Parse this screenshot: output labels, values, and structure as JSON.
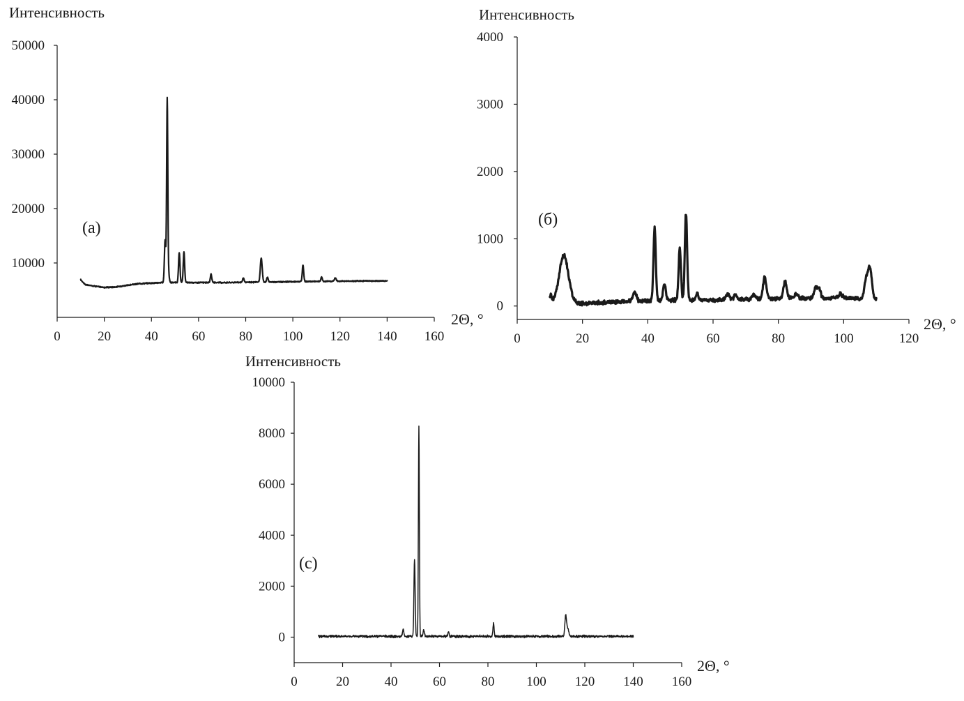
{
  "figure": {
    "background": "#ffffff",
    "ink": "#1a1a1a"
  },
  "chart_data": [
    {
      "id": "a",
      "type": "line",
      "panel_label": "(a)",
      "ylabel": "Интенсивность",
      "xlabel": "2Θ, °",
      "xlim": [
        0,
        160
      ],
      "ylim": [
        0,
        50000
      ],
      "xticks": [
        0,
        20,
        40,
        60,
        80,
        100,
        120,
        140,
        160
      ],
      "yticks": [
        10000,
        20000,
        30000,
        40000,
        50000
      ],
      "grid": false,
      "series": [
        {
          "baseline": [
            [
              10,
              6900
            ],
            [
              12,
              6000
            ],
            [
              15,
              5800
            ],
            [
              20,
              5500
            ],
            [
              25,
              5600
            ],
            [
              30,
              5900
            ],
            [
              35,
              6200
            ],
            [
              40,
              6300
            ],
            [
              45,
              6400
            ],
            [
              50,
              6400
            ],
            [
              60,
              6400
            ],
            [
              70,
              6400
            ],
            [
              80,
              6450
            ],
            [
              90,
              6500
            ],
            [
              100,
              6550
            ],
            [
              110,
              6600
            ],
            [
              120,
              6650
            ],
            [
              130,
              6700
            ],
            [
              140,
              6700
            ]
          ],
          "peaks": [
            [
              45.8,
              7800,
              0.3
            ],
            [
              46.7,
              33700,
              0.25
            ],
            [
              47.3,
              1500,
              0.3
            ],
            [
              51.8,
              5500,
              0.3
            ],
            [
              53.8,
              5600,
              0.3
            ],
            [
              65.3,
              1600,
              0.3
            ],
            [
              79,
              800,
              0.3
            ],
            [
              86.6,
              4400,
              0.4
            ],
            [
              89.2,
              900,
              0.3
            ],
            [
              104.3,
              3000,
              0.3
            ],
            [
              112.2,
              800,
              0.3
            ],
            [
              118,
              600,
              0.4
            ]
          ],
          "noise": 120
        }
      ]
    },
    {
      "id": "b",
      "type": "line",
      "panel_label": "(б)",
      "ylabel": "Интенсивность",
      "xlabel": "2Θ, °",
      "xlim": [
        0,
        120
      ],
      "ylim": [
        -200,
        4000
      ],
      "xticks": [
        0,
        20,
        40,
        60,
        80,
        100,
        120
      ],
      "yticks": [
        0,
        1000,
        2000,
        3000,
        4000
      ],
      "grid": false,
      "series": [
        {
          "baseline": [
            [
              10,
              60
            ],
            [
              15,
              50
            ],
            [
              20,
              40
            ],
            [
              30,
              60
            ],
            [
              40,
              80
            ],
            [
              50,
              90
            ],
            [
              60,
              90
            ],
            [
              70,
              100
            ],
            [
              80,
              110
            ],
            [
              90,
              120
            ],
            [
              100,
              120
            ],
            [
              105,
              110
            ],
            [
              110,
              110
            ]
          ],
          "peaks": [
            [
              10.3,
              100,
              0.3
            ],
            [
              14.3,
              700,
              1.4
            ],
            [
              36,
              130,
              0.5
            ],
            [
              42.1,
              1080,
              0.35
            ],
            [
              45.1,
              250,
              0.4
            ],
            [
              49.8,
              780,
              0.35
            ],
            [
              51.7,
              1290,
              0.35
            ],
            [
              55.1,
              100,
              0.4
            ],
            [
              64.5,
              90,
              0.5
            ],
            [
              66.8,
              70,
              0.4
            ],
            [
              72.5,
              70,
              0.5
            ],
            [
              75.8,
              320,
              0.5
            ],
            [
              82.1,
              250,
              0.5
            ],
            [
              85.5,
              60,
              0.5
            ],
            [
              91.5,
              170,
              0.5
            ],
            [
              92.6,
              120,
              0.4
            ],
            [
              99,
              60,
              0.6
            ],
            [
              106.8,
              250,
              0.5
            ],
            [
              108,
              470,
              0.6
            ]
          ],
          "noise": 35
        }
      ]
    },
    {
      "id": "c",
      "type": "line",
      "panel_label": "(c)",
      "ylabel": "Интенсивность",
      "xlabel": "2Θ, °",
      "xlim": [
        0,
        160
      ],
      "ylim": [
        -1000,
        10000
      ],
      "xticks": [
        0,
        20,
        40,
        60,
        80,
        100,
        120,
        140,
        160
      ],
      "yticks": [
        0,
        2000,
        4000,
        6000,
        8000,
        10000
      ],
      "grid": false,
      "series": [
        {
          "baseline": [
            [
              10,
              30
            ],
            [
              140,
              30
            ]
          ],
          "peaks": [
            [
              45,
              250,
              0.3
            ],
            [
              49.7,
              3050,
              0.25
            ],
            [
              51.5,
              8250,
              0.2
            ],
            [
              53.5,
              250,
              0.3
            ],
            [
              63.7,
              200,
              0.25
            ],
            [
              82.3,
              500,
              0.25
            ],
            [
              112.1,
              800,
              0.35
            ],
            [
              113,
              300,
              0.4
            ]
          ],
          "noise": 60
        }
      ]
    }
  ]
}
